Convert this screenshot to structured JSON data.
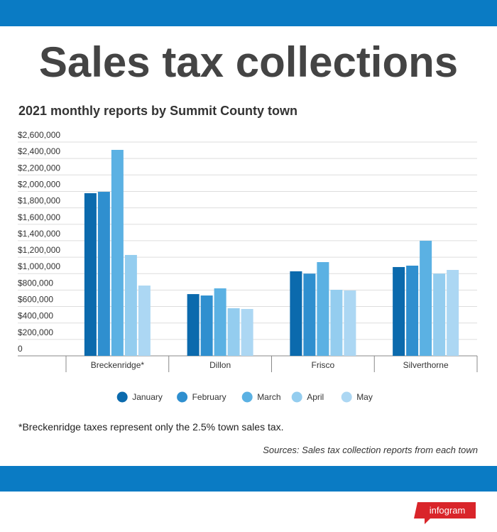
{
  "chart_data": {
    "type": "bar",
    "title": "Sales tax collections",
    "subtitle": "2021 monthly reports by Summit County town",
    "note": "*Breckenridge taxes represent only the 2.5% town sales tax.",
    "source": "Sources: Sales tax collection reports from each town",
    "categories": [
      "Breckenridge*",
      "Dillon",
      "Frisco",
      "Silverthorne"
    ],
    "series": [
      {
        "name": "January",
        "color": "#0b6aad",
        "values": [
          1978000,
          751000,
          1028000,
          1080000
        ]
      },
      {
        "name": "February",
        "color": "#2f8fcf",
        "values": [
          1995000,
          734000,
          1000000,
          1097000
        ]
      },
      {
        "name": "March",
        "color": "#5bb1e3",
        "values": [
          2505000,
          821000,
          1140000,
          1400000
        ]
      },
      {
        "name": "April",
        "color": "#94cdef",
        "values": [
          1227000,
          579000,
          803000,
          1000000
        ]
      },
      {
        "name": "May",
        "color": "#acd7f3",
        "values": [
          855000,
          570000,
          795000,
          1045000
        ]
      }
    ],
    "ylim": [
      0,
      2600000
    ],
    "yticks": [
      0,
      {
        "value": 200000,
        "label": "$200,000"
      },
      {
        "value": 400000,
        "label": "$400,000"
      },
      {
        "value": 600000,
        "label": "$600,000"
      },
      {
        "value": 800000,
        "label": "$800,000"
      },
      {
        "value": 1000000,
        "label": "$1,000,000"
      },
      {
        "value": 1200000,
        "label": "$1,200,000"
      },
      {
        "value": 1400000,
        "label": "$1,400,000"
      },
      {
        "value": 1600000,
        "label": "$1,600,000"
      },
      {
        "value": 1800000,
        "label": "$1,800,000"
      },
      {
        "value": 2000000,
        "label": "$2,000,000"
      },
      {
        "value": 2200000,
        "label": "$2,200,000"
      },
      {
        "value": 2400000,
        "label": "$2,400,000"
      },
      {
        "value": 2600000,
        "label": "$2,600,000"
      }
    ],
    "grid": true
  },
  "branding": "infogram"
}
